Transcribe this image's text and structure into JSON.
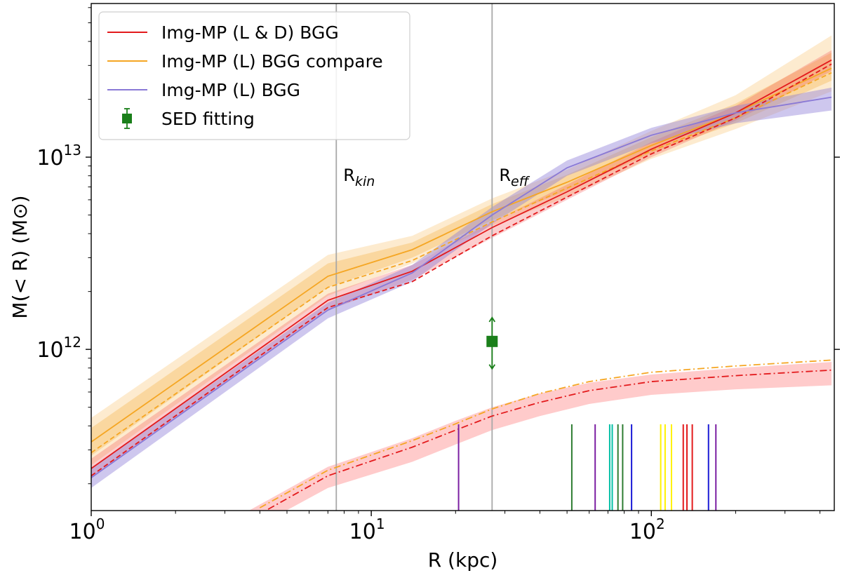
{
  "chart_data": {
    "type": "line",
    "title": "",
    "xlabel": "R (kpc)",
    "ylabel": "M(< R) (M⊙)",
    "xscale": "log",
    "yscale": "log",
    "xlim": [
      1,
      450
    ],
    "ylim": [
      145000000000.0,
      63000000000000.0
    ],
    "x_ticks": [
      {
        "value": 1,
        "base": "10",
        "exp": "0"
      },
      {
        "value": 10,
        "base": "10",
        "exp": "1"
      },
      {
        "value": 100,
        "base": "10",
        "exp": "2"
      }
    ],
    "y_ticks": [
      {
        "value": 1000000000000.0,
        "base": "10",
        "exp": "12"
      },
      {
        "value": 10000000000000.0,
        "base": "10",
        "exp": "13"
      }
    ],
    "vlines": [
      {
        "x": 7.5,
        "label_main": "R",
        "label_sub": "kin"
      },
      {
        "x": 27,
        "label_main": "R",
        "label_sub": "eff"
      }
    ],
    "legend": {
      "position": "upper-left",
      "entries": [
        {
          "label": "Img-MP (L & D) BGG",
          "color": "#e31a1c",
          "marker": "line"
        },
        {
          "label": "Img-MP (L) BGG compare",
          "color": "#f5a623",
          "marker": "line"
        },
        {
          "label": "Img-MP (L) BGG",
          "color": "#8a79d6",
          "marker": "line"
        },
        {
          "label": "SED fitting",
          "color": "#1a7f1a",
          "marker": "square-errorbar"
        }
      ]
    },
    "series": [
      {
        "name": "Img-MP (L) BGG compare",
        "style": "solid",
        "color": "#f5a623",
        "x": [
          1,
          7,
          14,
          27,
          50,
          100,
          200,
          440
        ],
        "y": [
          330000000000.0,
          2400000000000.0,
          3300000000000.0,
          5200000000000.0,
          7400000000000.0,
          11500000000000.0,
          17000000000000.0,
          29000000000000.0
        ],
        "band_inner": {
          "color": "#f5a623",
          "opacity": 0.28,
          "lo": [
            280000000000.0,
            2100000000000.0,
            3000000000000.0,
            4700000000000.0,
            6700000000000.0,
            10500000000000.0,
            15000000000000.0,
            25000000000000.0
          ],
          "hi": [
            390000000000.0,
            2800000000000.0,
            3600000000000.0,
            5700000000000.0,
            8100000000000.0,
            12700000000000.0,
            19000000000000.0,
            35000000000000.0
          ]
        },
        "band_outer": {
          "color": "#f5a623",
          "opacity": 0.22,
          "lo": [
            250000000000.0,
            1900000000000.0,
            2800000000000.0,
            4400000000000.0,
            6200000000000.0,
            9800000000000.0,
            14000000000000.0,
            22000000000000.0
          ],
          "hi": [
            440000000000.0,
            3100000000000.0,
            3900000000000.0,
            6100000000000.0,
            8600000000000.0,
            13700000000000.0,
            21000000000000.0,
            43000000000000.0
          ]
        }
      },
      {
        "name": "Img-MP (L) BGG compare (dashed)",
        "style": "dashed",
        "color": "#f5a623",
        "x": [
          1,
          7,
          14,
          27,
          50,
          100,
          200,
          440
        ],
        "y": [
          290000000000.0,
          2100000000000.0,
          2900000000000.0,
          4600000000000.0,
          6900000000000.0,
          10800000000000.0,
          16000000000000.0,
          27500000000000.0
        ]
      },
      {
        "name": "Img-MP (L & D) BGG",
        "style": "solid",
        "color": "#e31a1c",
        "x": [
          1,
          7,
          14,
          27,
          50,
          100,
          200,
          440
        ],
        "y": [
          240000000000.0,
          1800000000000.0,
          2550000000000.0,
          4300000000000.0,
          6600000000000.0,
          11000000000000.0,
          17000000000000.0,
          32000000000000.0
        ],
        "band_inner": {
          "color": "#f44a4a",
          "opacity": 0.28,
          "lo": [
            215000000000.0,
            1600000000000.0,
            2300000000000.0,
            3800000000000.0,
            6000000000000.0,
            10000000000000.0,
            15500000000000.0,
            28000000000000.0
          ],
          "hi": [
            270000000000.0,
            1950000000000.0,
            2750000000000.0,
            4600000000000.0,
            7200000000000.0,
            12000000000000.0,
            18500000000000.0,
            36000000000000.0
          ]
        }
      },
      {
        "name": "Img-MP (L & D) BGG (dashed)",
        "style": "dashed",
        "color": "#e31a1c",
        "x": [
          1,
          7,
          14,
          27,
          50,
          100,
          200,
          440
        ],
        "y": [
          220000000000.0,
          1650000000000.0,
          2250000000000.0,
          3900000000000.0,
          6200000000000.0,
          10400000000000.0,
          16000000000000.0,
          30500000000000.0
        ]
      },
      {
        "name": "Img-MP (L) BGG",
        "style": "solid",
        "color": "#8a79d6",
        "x": [
          1,
          7,
          14,
          27,
          50,
          100,
          200,
          440
        ],
        "y": [
          215000000000.0,
          1600000000000.0,
          2500000000000.0,
          5000000000000.0,
          8800000000000.0,
          13000000000000.0,
          17000000000000.0,
          20500000000000.0
        ],
        "band_inner": {
          "color": "#8a79d6",
          "opacity": 0.42,
          "lo": [
            190000000000.0,
            1450000000000.0,
            2250000000000.0,
            4500000000000.0,
            8000000000000.0,
            11800000000000.0,
            15000000000000.0,
            17500000000000.0
          ],
          "hi": [
            240000000000.0,
            1750000000000.0,
            2750000000000.0,
            5500000000000.0,
            9600000000000.0,
            14200000000000.0,
            18500000000000.0,
            23000000000000.0
          ]
        }
      },
      {
        "name": "dash-dot (L & D)",
        "style": "dashdot",
        "color": "#e31a1c",
        "x": [
          3.5,
          7,
          14,
          20,
          27,
          40,
          60,
          100,
          200,
          440
        ],
        "y": [
          125000000000.0,
          220000000000.0,
          310000000000.0,
          380000000000.0,
          450000000000.0,
          530000000000.0,
          610000000000.0,
          680000000000.0,
          730000000000.0,
          780000000000.0
        ],
        "band_inner": {
          "color": "#ff6b6b",
          "opacity": 0.35,
          "lo": [
            110000000000.0,
            190000000000.0,
            260000000000.0,
            320000000000.0,
            380000000000.0,
            450000000000.0,
            520000000000.0,
            580000000000.0,
            620000000000.0,
            650000000000.0
          ],
          "hi": [
            140000000000.0,
            245000000000.0,
            345000000000.0,
            425000000000.0,
            500000000000.0,
            590000000000.0,
            670000000000.0,
            740000000000.0,
            800000000000.0,
            860000000000.0
          ]
        }
      },
      {
        "name": "dash-dot (L)",
        "style": "dashdot",
        "color": "#f5a623",
        "x": [
          4,
          7,
          14,
          20,
          27,
          40,
          60,
          100,
          200,
          440
        ],
        "y": [
          150000000000.0,
          235000000000.0,
          335000000000.0,
          410000000000.0,
          490000000000.0,
          590000000000.0,
          680000000000.0,
          760000000000.0,
          820000000000.0,
          880000000000.0
        ]
      }
    ],
    "sed_point": {
      "label": "SED fitting",
      "x": 27,
      "y": 1100000000000.0,
      "y_lo": 800000000000.0,
      "y_hi": 1450000000000.0,
      "color": "#1a7f1a"
    },
    "rug_ticks": [
      {
        "x": 20.5,
        "color": "#7b1fa2"
      },
      {
        "x": 52,
        "color": "#2e7d32"
      },
      {
        "x": 63,
        "color": "#7b1fa2"
      },
      {
        "x": 71,
        "color": "#00bfa5"
      },
      {
        "x": 72.5,
        "color": "#00bfa5"
      },
      {
        "x": 76,
        "color": "#2e7d32"
      },
      {
        "x": 79,
        "color": "#2e7d32"
      },
      {
        "x": 85,
        "color": "#1a1ad6"
      },
      {
        "x": 108,
        "color": "#fff200"
      },
      {
        "x": 112,
        "color": "#fff200"
      },
      {
        "x": 118,
        "color": "#fff200"
      },
      {
        "x": 130,
        "color": "#e31a1c"
      },
      {
        "x": 134,
        "color": "#e31a1c"
      },
      {
        "x": 140,
        "color": "#e31a1c"
      },
      {
        "x": 160,
        "color": "#1a1ad6"
      },
      {
        "x": 170,
        "color": "#7b1fa2"
      }
    ]
  }
}
